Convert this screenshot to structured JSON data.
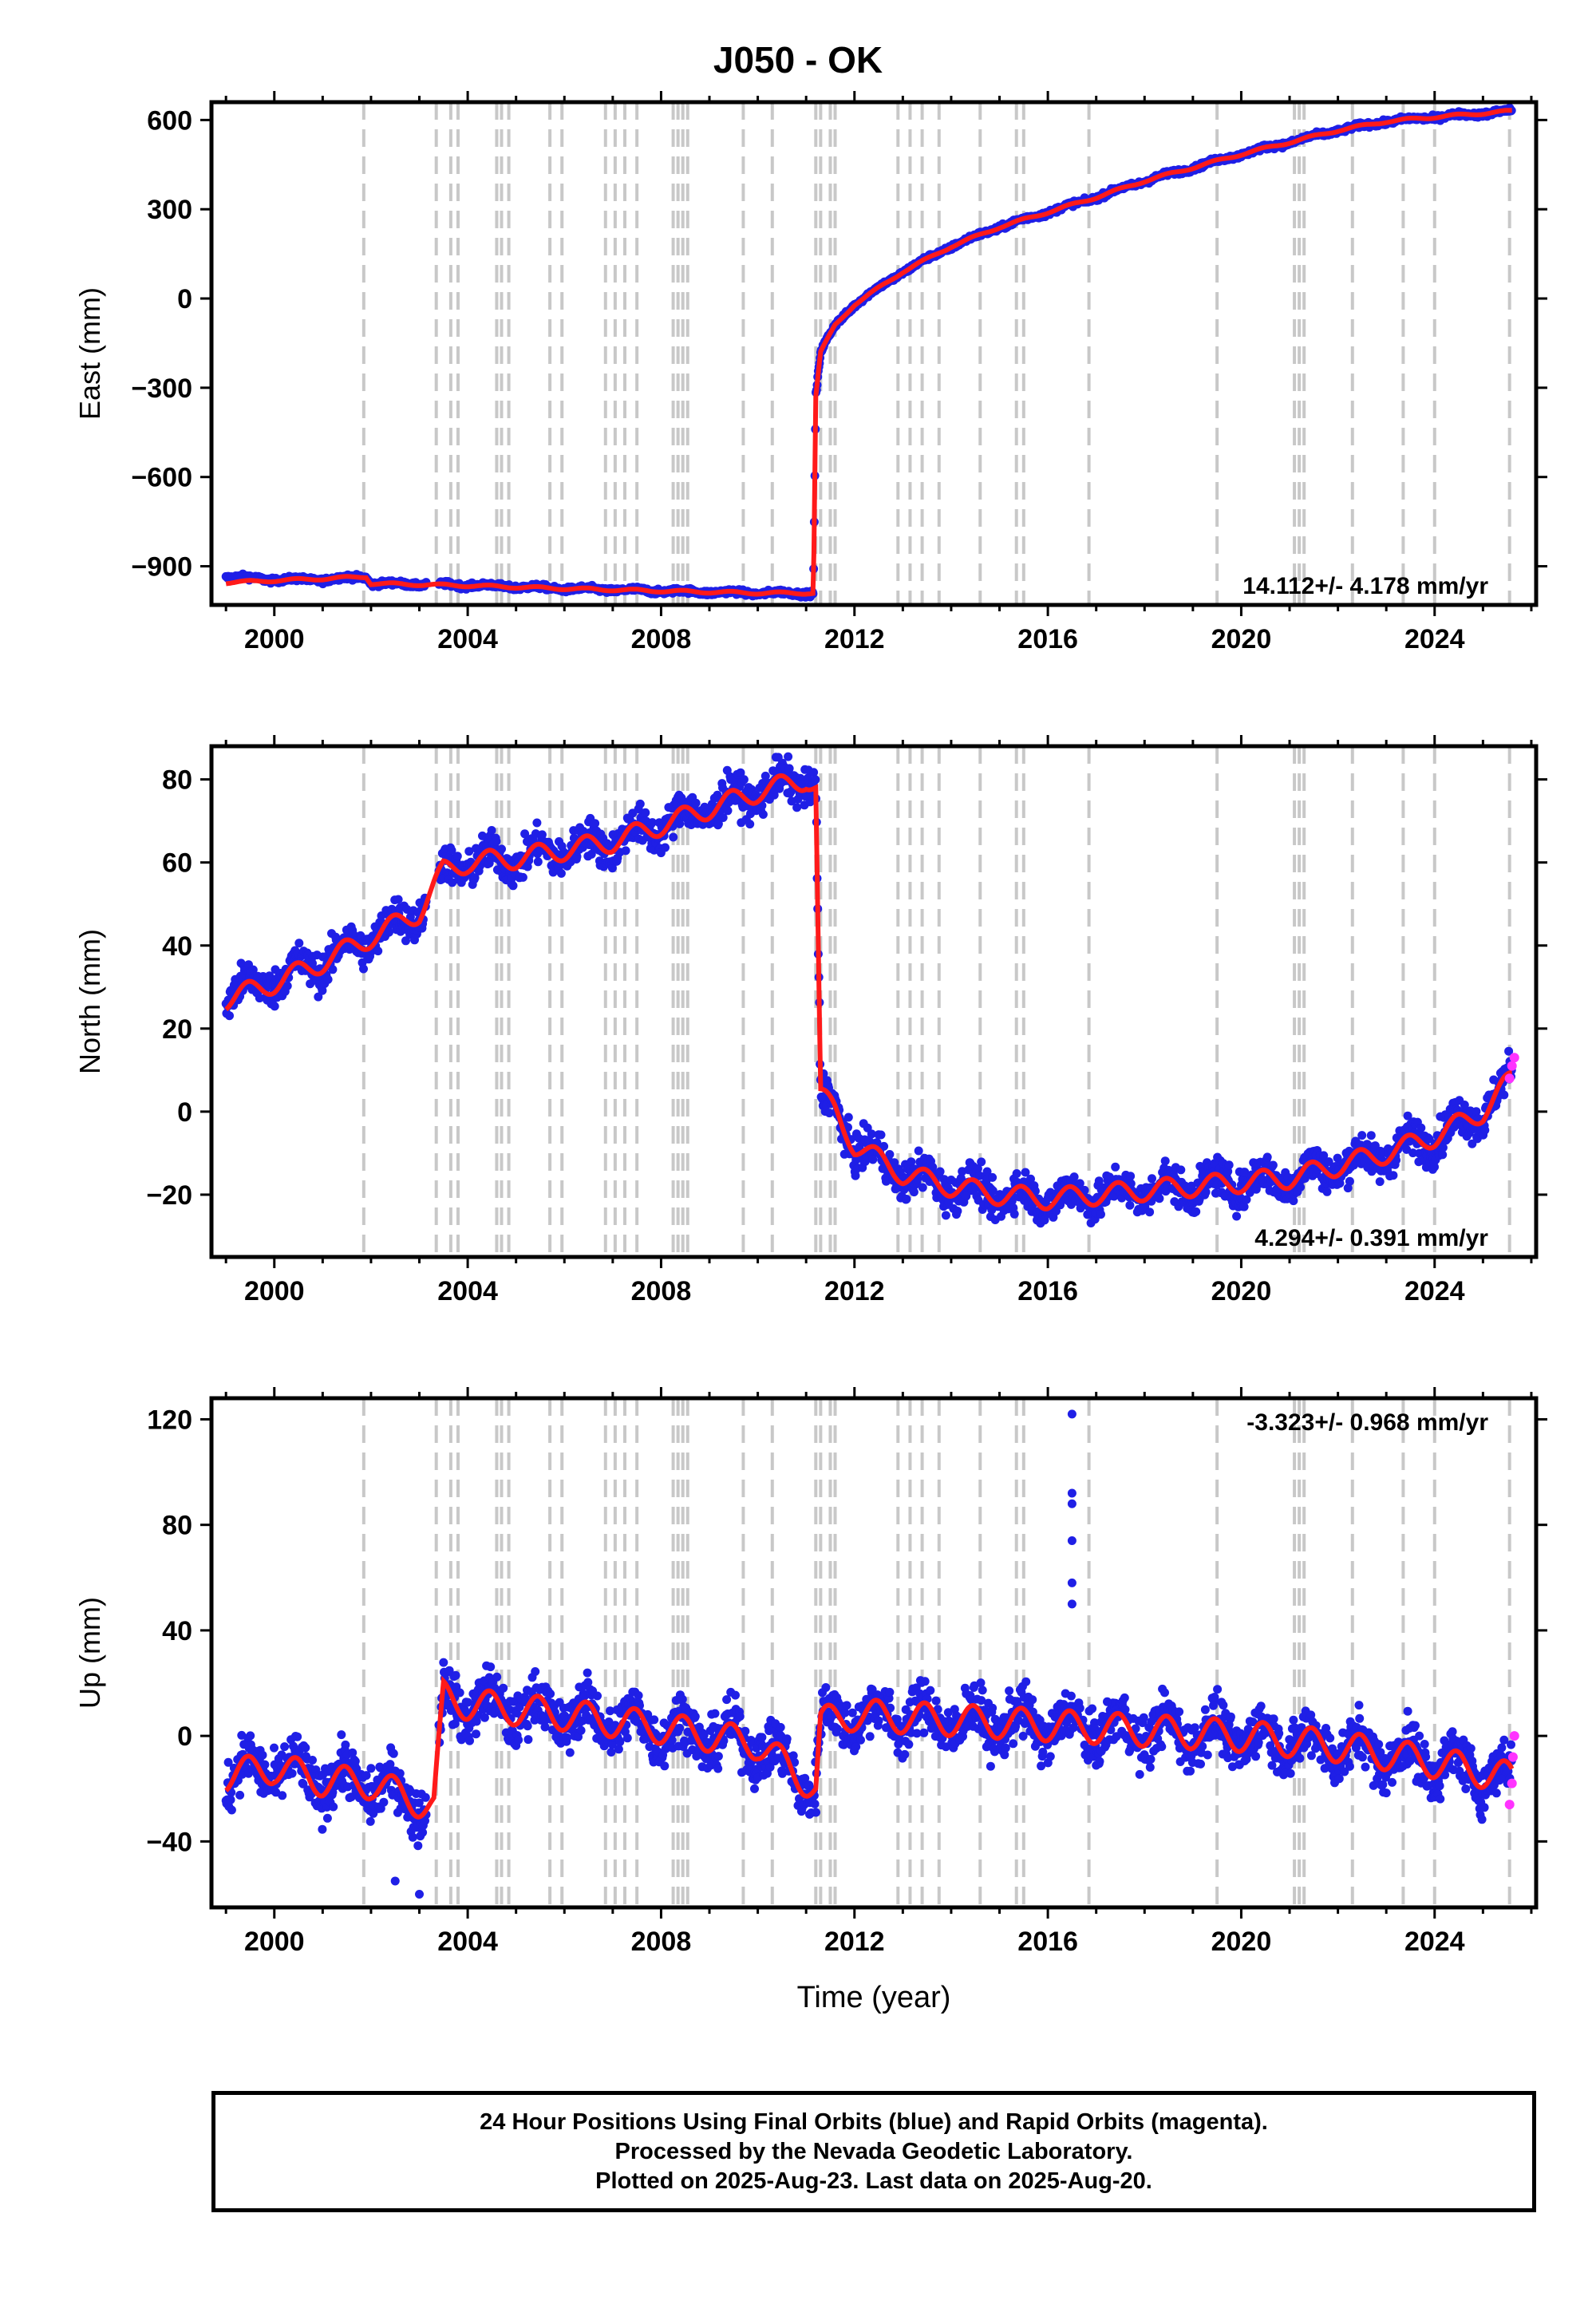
{
  "title": "J050 - OK",
  "xlabel": "Time (year)",
  "footer": [
    "24 Hour Positions Using Final Orbits (blue) and Rapid Orbits (magenta).",
    "Processed by the Nevada Geodetic Laboratory.",
    "Plotted on 2025-Aug-23. Last data on 2025-Aug-20."
  ],
  "colors": {
    "final_orbits": "#1f1fe6",
    "rapid_orbits": "#ff33ff",
    "model": "#ff1a1a",
    "event_lines": "#c8c8c8"
  },
  "chart_data": [
    {
      "type": "scatter",
      "ylabel": "East (mm)",
      "xlim": [
        1998.7,
        2026.1
      ],
      "ylim": [
        -1030,
        660
      ],
      "yticks": [
        -900,
        -600,
        -300,
        0,
        300,
        600
      ],
      "xticks": [
        2000,
        2004,
        2008,
        2012,
        2016,
        2020,
        2024
      ],
      "rate_label": "14.112+/- 4.178 mm/yr",
      "rate_position": "bottom-right",
      "series": [
        {
          "role": "final",
          "x": [
            1999.0,
            2000.0,
            2001.0,
            2001.9,
            2002.0,
            2004.0,
            2006.0,
            2008.0,
            2010.0,
            2011.15,
            2011.2,
            2011.3,
            2011.6,
            2012.0,
            2013.0,
            2014.0,
            2015.0,
            2016.0,
            2017.0,
            2018.0,
            2019.0,
            2020.0,
            2021.0,
            2022.0,
            2023.0,
            2024.0,
            2025.6
          ],
          "y": [
            -935,
            -945,
            -945,
            -935,
            -958,
            -963,
            -975,
            -983,
            -990,
            -990,
            -330,
            -180,
            -90,
            -20,
            90,
            175,
            240,
            290,
            340,
            395,
            440,
            485,
            525,
            565,
            595,
            610,
            630
          ]
        },
        {
          "role": "model",
          "x": [
            1999.0,
            2000.0,
            2001.0,
            2001.9,
            2002.0,
            2004.0,
            2006.0,
            2008.0,
            2010.0,
            2011.15,
            2011.2,
            2011.3,
            2011.6,
            2012.0,
            2013.0,
            2014.0,
            2015.0,
            2016.0,
            2017.0,
            2018.0,
            2019.0,
            2020.0,
            2021.0,
            2022.0,
            2023.0,
            2024.0,
            2025.6
          ],
          "y": [
            -955,
            -948,
            -942,
            -935,
            -958,
            -965,
            -975,
            -983,
            -990,
            -990,
            -330,
            -180,
            -90,
            -20,
            90,
            175,
            240,
            290,
            340,
            395,
            440,
            485,
            525,
            565,
            595,
            610,
            630
          ]
        }
      ]
    },
    {
      "type": "scatter",
      "ylabel": "North (mm)",
      "xlim": [
        1998.7,
        2026.1
      ],
      "ylim": [
        -35,
        88
      ],
      "yticks": [
        -20,
        0,
        20,
        40,
        60,
        80
      ],
      "xticks": [
        2000,
        2004,
        2008,
        2012,
        2016,
        2020,
        2024
      ],
      "rate_label": "4.294+/- 0.391 mm/yr",
      "rate_position": "bottom-right",
      "series": [
        {
          "role": "final",
          "x": [
            1999.0,
            2000.0,
            2001.0,
            2002.0,
            2003.0,
            2003.5,
            2004.0,
            2005.0,
            2006.0,
            2007.0,
            2008.0,
            2009.0,
            2010.0,
            2011.0,
            2011.2,
            2011.3,
            2011.6,
            2012.0,
            2013.0,
            2014.0,
            2015.0,
            2016.0,
            2017.0,
            2018.0,
            2019.0,
            2020.0,
            2021.0,
            2022.0,
            2023.0,
            2024.0,
            2025.0,
            2025.6
          ],
          "y": [
            28,
            32,
            36,
            42,
            48,
            58,
            60,
            61,
            63,
            65,
            69,
            73,
            77,
            80,
            78,
            4,
            0,
            -8,
            -15,
            -18,
            -20,
            -21,
            -20,
            -19,
            -18,
            -17,
            -16,
            -13,
            -10,
            -6,
            0,
            8
          ]
        },
        {
          "role": "model",
          "x": [
            1999.0,
            2000.0,
            2001.0,
            2002.0,
            2003.0,
            2003.5,
            2004.0,
            2005.0,
            2006.0,
            2007.0,
            2008.0,
            2009.0,
            2010.0,
            2011.0,
            2011.2,
            2011.3,
            2011.6,
            2012.0,
            2013.0,
            2014.0,
            2015.0,
            2016.0,
            2017.0,
            2018.0,
            2019.0,
            2020.0,
            2021.0,
            2022.0,
            2023.0,
            2024.0,
            2025.0,
            2025.6
          ],
          "y": [
            27,
            31,
            36,
            42,
            48,
            58,
            60,
            61,
            63,
            65,
            69,
            73,
            77,
            80,
            78,
            4,
            0,
            -8,
            -15,
            -18,
            -20,
            -21,
            -20,
            -19,
            -18,
            -17,
            -16,
            -13,
            -10,
            -6,
            0,
            8
          ]
        },
        {
          "role": "rapid",
          "x": [
            2025.55,
            2025.6,
            2025.65
          ],
          "y": [
            8,
            11,
            13
          ]
        }
      ]
    },
    {
      "type": "scatter",
      "ylabel": "Up (mm)",
      "xlim": [
        1998.7,
        2026.1
      ],
      "ylim": [
        -65,
        128
      ],
      "yticks": [
        -40,
        0,
        40,
        80,
        120
      ],
      "xticks": [
        2000,
        2004,
        2008,
        2012,
        2016,
        2020,
        2024
      ],
      "rate_label": "-3.323+/- 0.968 mm/yr",
      "rate_position": "top-right",
      "series": [
        {
          "role": "final",
          "x": [
            1999.0,
            2000.0,
            2001.0,
            2002.0,
            2003.0,
            2003.3,
            2003.5,
            2004.0,
            2006.0,
            2008.0,
            2010.0,
            2011.2,
            2011.3,
            2012.0,
            2014.0,
            2016.0,
            2018.0,
            2020.0,
            2022.0,
            2024.0,
            2025.6
          ],
          "y": [
            -15,
            -12,
            -17,
            -18,
            -25,
            -27,
            15,
            12,
            8,
            3,
            -3,
            -20,
            5,
            8,
            6,
            4,
            2,
            0,
            -4,
            -10,
            -16
          ]
        },
        {
          "role": "model",
          "x": [
            1999.0,
            2000.0,
            2001.0,
            2002.0,
            2003.0,
            2003.3,
            2003.5,
            2004.0,
            2006.0,
            2008.0,
            2010.0,
            2011.2,
            2011.3,
            2012.0,
            2014.0,
            2016.0,
            2018.0,
            2020.0,
            2022.0,
            2024.0,
            2025.6
          ],
          "y": [
            -15,
            -12,
            -17,
            -18,
            -25,
            -27,
            15,
            12,
            8,
            3,
            -3,
            -20,
            5,
            8,
            6,
            4,
            2,
            0,
            -4,
            -10,
            -16
          ]
        },
        {
          "role": "final_outliers",
          "x": [
            2016.5,
            2016.5,
            2016.5,
            2016.5,
            2016.5,
            2016.5,
            2003.0,
            2002.5
          ],
          "y": [
            122,
            92,
            88,
            74,
            58,
            50,
            -60,
            -55
          ]
        },
        {
          "role": "rapid",
          "x": [
            2025.55,
            2025.6,
            2025.62,
            2025.65
          ],
          "y": [
            -26,
            -18,
            -8,
            0
          ]
        }
      ]
    }
  ],
  "event_years": [
    2001.85,
    2003.35,
    2003.65,
    2003.8,
    2004.6,
    2004.7,
    2004.85,
    2005.7,
    2005.95,
    2006.85,
    2007.05,
    2007.25,
    2007.5,
    2008.25,
    2008.35,
    2008.45,
    2008.55,
    2009.7,
    2010.3,
    2011.2,
    2011.3,
    2011.5,
    2011.6,
    2012.9,
    2013.15,
    2013.4,
    2013.75,
    2014.6,
    2015.35,
    2015.5,
    2016.85,
    2019.5,
    2021.1,
    2021.2,
    2021.3,
    2022.3,
    2023.35,
    2024.0,
    2025.55
  ]
}
